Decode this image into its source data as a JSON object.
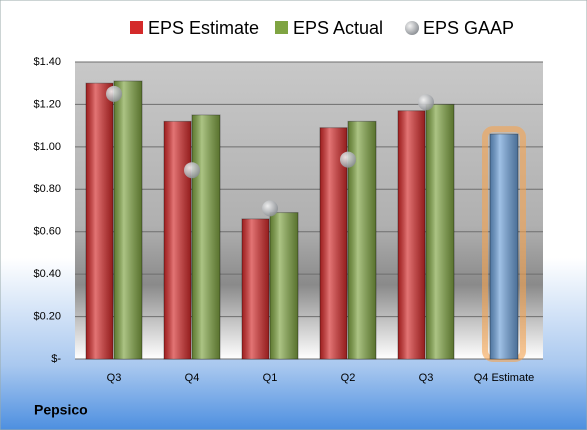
{
  "chart_data": {
    "type": "bar",
    "title": "Pepsico",
    "categories": [
      "Q3",
      "Q4",
      "Q1",
      "Q2",
      "Q3",
      "Q4 Estimate"
    ],
    "series": [
      {
        "name": "EPS Estimate",
        "color": "#d42a2a",
        "colors": [
          "#d42a2a",
          "#d42a2a",
          "#d42a2a",
          "#d42a2a",
          "#d42a2a",
          "#6b9fd8"
        ],
        "values": [
          1.3,
          1.12,
          0.66,
          1.09,
          1.17,
          1.06
        ]
      },
      {
        "name": "EPS Actual",
        "color": "#7fa442",
        "values": [
          1.31,
          1.15,
          0.69,
          1.12,
          1.2,
          null
        ]
      },
      {
        "name": "EPS GAAP",
        "color": "#b9bdc2",
        "type": "scatter",
        "values": [
          1.25,
          0.89,
          0.71,
          0.94,
          1.21,
          null
        ]
      }
    ],
    "ylim": [
      0,
      1.4
    ],
    "yticks": [
      {
        "value": 0,
        "label": "$-"
      },
      {
        "value": 0.2,
        "label": "$0.20"
      },
      {
        "value": 0.4,
        "label": "$0.40"
      },
      {
        "value": 0.6,
        "label": "$0.60"
      },
      {
        "value": 0.8,
        "label": "$0.80"
      },
      {
        "value": 1.0,
        "label": "$1.00"
      },
      {
        "value": 1.2,
        "label": "$1.20"
      },
      {
        "value": 1.4,
        "label": "$1.40"
      }
    ],
    "grid": true,
    "legend": "top"
  }
}
